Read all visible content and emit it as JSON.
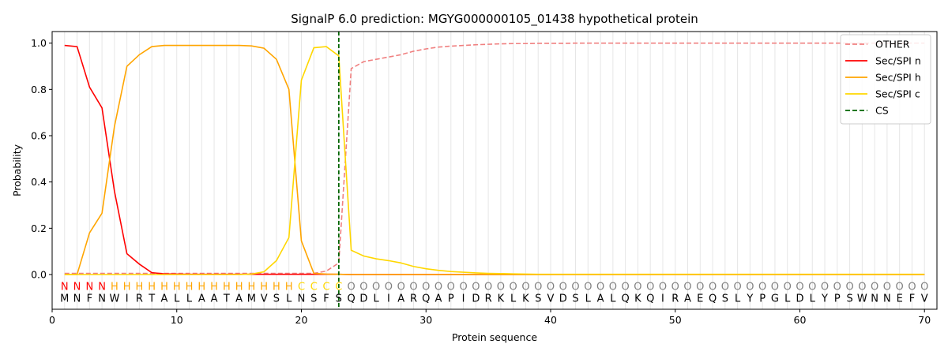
{
  "chart_data": {
    "type": "line",
    "title": "SignalP 6.0 prediction: MGYG000000105_01438 hypothetical protein",
    "xlabel": "Protein sequence",
    "ylabel": "Probability",
    "xlim": [
      0,
      71
    ],
    "ylim": [
      -0.15,
      1.05
    ],
    "xticks": [
      0,
      10,
      20,
      30,
      40,
      50,
      60,
      70
    ],
    "yticks": [
      0.0,
      0.2,
      0.4,
      0.6,
      0.8,
      1.0
    ],
    "grid": "vertical lines at each residue",
    "legend_position": "top-right",
    "sequence": [
      "M",
      "N",
      "F",
      "N",
      "W",
      "I",
      "R",
      "T",
      "A",
      "L",
      "L",
      "A",
      "A",
      "T",
      "A",
      "M",
      "V",
      "S",
      "L",
      "N",
      "S",
      "F",
      "S",
      "Q",
      "D",
      "L",
      "I",
      "A",
      "R",
      "Q",
      "A",
      "P",
      "I",
      "D",
      "R",
      "K",
      "L",
      "K",
      "S",
      "V",
      "D",
      "S",
      "L",
      "A",
      "L",
      "Q",
      "K",
      "Q",
      "I",
      "R",
      "A",
      "E",
      "Q",
      "S",
      "L",
      "Y",
      "P",
      "G",
      "L",
      "D",
      "L",
      "Y",
      "P",
      "S",
      "W",
      "N",
      "N",
      "E",
      "F",
      "V"
    ],
    "region_labels": [
      "N",
      "N",
      "N",
      "N",
      "H",
      "H",
      "H",
      "H",
      "H",
      "H",
      "H",
      "H",
      "H",
      "H",
      "H",
      "H",
      "H",
      "H",
      "H",
      "C",
      "C",
      "C",
      "C",
      "O",
      "O",
      "O",
      "O",
      "O",
      "O",
      "O",
      "O",
      "O",
      "O",
      "O",
      "O",
      "O",
      "O",
      "O",
      "O",
      "O",
      "O",
      "O",
      "O",
      "O",
      "O",
      "O",
      "O",
      "O",
      "O",
      "O",
      "O",
      "O",
      "O",
      "O",
      "O",
      "O",
      "O",
      "O",
      "O",
      "O",
      "O",
      "O",
      "O",
      "O",
      "O",
      "O",
      "O",
      "O",
      "O",
      "O"
    ],
    "region_colors": {
      "N": "#ff0000",
      "H": "#ffa500",
      "C": "#ffd700",
      "O": "#808080"
    },
    "series": [
      {
        "name": "OTHER",
        "color": "#f08080",
        "dashed": true,
        "values": [
          0.005,
          0.005,
          0.005,
          0.005,
          0.005,
          0.005,
          0.005,
          0.005,
          0.005,
          0.005,
          0.005,
          0.005,
          0.005,
          0.005,
          0.005,
          0.005,
          0.005,
          0.005,
          0.005,
          0.005,
          0.005,
          0.015,
          0.05,
          0.89,
          0.92,
          0.93,
          0.94,
          0.95,
          0.965,
          0.975,
          0.983,
          0.987,
          0.99,
          0.993,
          0.995,
          0.997,
          0.998,
          0.998,
          0.999,
          0.999,
          0.999,
          1.0,
          1.0,
          1.0,
          1.0,
          1.0,
          1.0,
          1.0,
          1.0,
          1.0,
          1.0,
          1.0,
          1.0,
          1.0,
          1.0,
          1.0,
          1.0,
          1.0,
          1.0,
          1.0,
          1.0,
          1.0,
          1.0,
          1.0,
          1.0,
          1.0,
          1.0,
          1.0,
          1.0,
          1.0
        ]
      },
      {
        "name": "Sec/SPI n",
        "color": "#ff0000",
        "dashed": false,
        "values": [
          0.99,
          0.985,
          0.81,
          0.72,
          0.36,
          0.09,
          0.045,
          0.008,
          0.003,
          0.002,
          0.001,
          0.001,
          0.001,
          0.001,
          0.001,
          0.001,
          0.001,
          0.001,
          0.001,
          0.001,
          0.001,
          0.001,
          0.001,
          0.0,
          0.0,
          0.0,
          0.0,
          0.0,
          0.0,
          0.0,
          0.0,
          0.0,
          0.0,
          0.0,
          0.0,
          0.0,
          0.0,
          0.0,
          0.0,
          0.0,
          0.0,
          0.0,
          0.0,
          0.0,
          0.0,
          0.0,
          0.0,
          0.0,
          0.0,
          0.0,
          0.0,
          0.0,
          0.0,
          0.0,
          0.0,
          0.0,
          0.0,
          0.0,
          0.0,
          0.0,
          0.0,
          0.0,
          0.0,
          0.0,
          0.0,
          0.0,
          0.0,
          0.0,
          0.0,
          0.0
        ]
      },
      {
        "name": "Sec/SPI h",
        "color": "#ffa500",
        "dashed": false,
        "values": [
          0.0,
          0.0,
          0.18,
          0.265,
          0.64,
          0.9,
          0.95,
          0.985,
          0.99,
          0.99,
          0.99,
          0.99,
          0.99,
          0.99,
          0.99,
          0.988,
          0.978,
          0.93,
          0.8,
          0.145,
          0.005,
          0.002,
          0.001,
          0.0,
          0.0,
          0.0,
          0.0,
          0.0,
          0.0,
          0.0,
          0.0,
          0.0,
          0.0,
          0.0,
          0.0,
          0.0,
          0.0,
          0.0,
          0.0,
          0.0,
          0.0,
          0.0,
          0.0,
          0.0,
          0.0,
          0.0,
          0.0,
          0.0,
          0.0,
          0.0,
          0.0,
          0.0,
          0.0,
          0.0,
          0.0,
          0.0,
          0.0,
          0.0,
          0.0,
          0.0,
          0.0,
          0.0,
          0.0,
          0.0,
          0.0,
          0.0,
          0.0,
          0.0,
          0.0,
          0.0
        ]
      },
      {
        "name": "Sec/SPI c",
        "color": "#ffd700",
        "dashed": false,
        "values": [
          0.0,
          0.0,
          0.0,
          0.0,
          0.0,
          0.0,
          0.0,
          0.0,
          0.0,
          0.0,
          0.0,
          0.0,
          0.0,
          0.0,
          0.0,
          0.002,
          0.012,
          0.06,
          0.16,
          0.84,
          0.98,
          0.985,
          0.945,
          0.105,
          0.08,
          0.068,
          0.06,
          0.05,
          0.035,
          0.025,
          0.018,
          0.013,
          0.01,
          0.007,
          0.005,
          0.004,
          0.003,
          0.002,
          0.001,
          0.001,
          0.001,
          0.001,
          0.001,
          0.001,
          0.001,
          0.001,
          0.001,
          0.001,
          0.001,
          0.001,
          0.001,
          0.001,
          0.001,
          0.001,
          0.001,
          0.001,
          0.001,
          0.001,
          0.001,
          0.001,
          0.001,
          0.001,
          0.001,
          0.001,
          0.001,
          0.001,
          0.001,
          0.001,
          0.001,
          0.001
        ]
      }
    ],
    "cs_line": {
      "name": "CS",
      "x": 23,
      "color": "#006400",
      "dashed": true
    }
  }
}
